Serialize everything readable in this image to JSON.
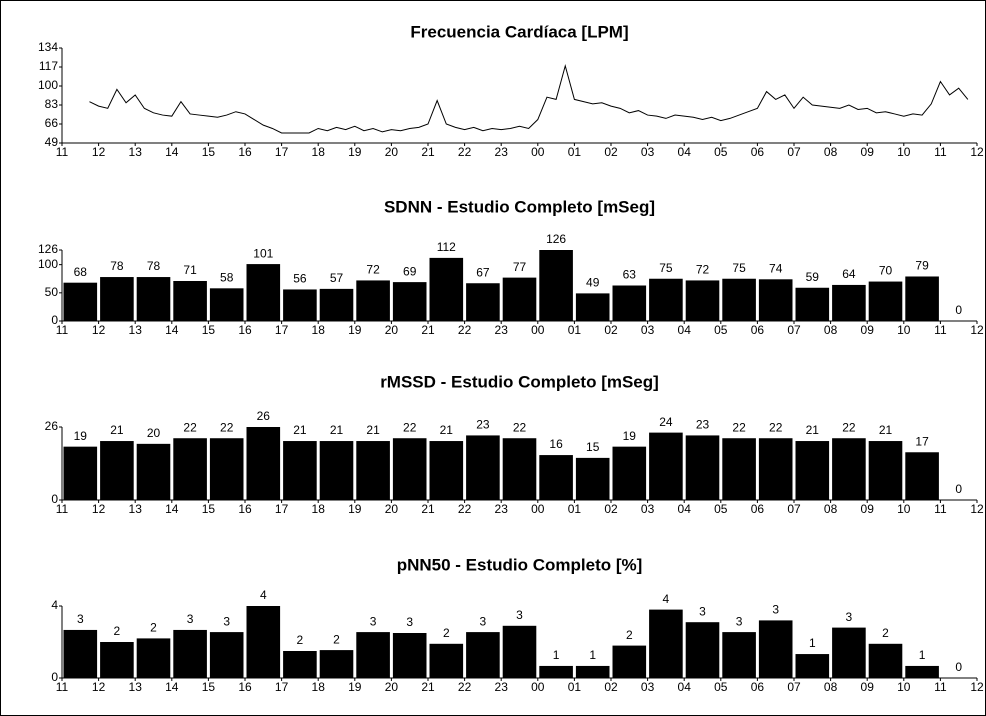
{
  "chart_data": [
    {
      "type": "line",
      "title": "Frecuencia Cardíaca [LPM]",
      "color": "#000000",
      "xlim": [
        11,
        36
      ],
      "xticks": [
        11,
        12,
        13,
        14,
        15,
        16,
        17,
        18,
        19,
        20,
        21,
        22,
        23,
        {
          "value": 24,
          "label": "00"
        },
        {
          "value": 25,
          "label": "01"
        },
        {
          "value": 26,
          "label": "02"
        },
        {
          "value": 27,
          "label": "03"
        },
        {
          "value": 28,
          "label": "04"
        },
        {
          "value": 29,
          "label": "05"
        },
        {
          "value": 30,
          "label": "06"
        },
        {
          "value": 31,
          "label": "07"
        },
        {
          "value": 32,
          "label": "08"
        },
        {
          "value": 33,
          "label": "09"
        },
        {
          "value": 34,
          "label": "10"
        },
        {
          "value": 35,
          "label": "11"
        },
        {
          "value": 36,
          "label": "12"
        }
      ],
      "ylim": [
        49,
        134
      ],
      "yticks": [
        49,
        66,
        83,
        100,
        117,
        134
      ],
      "x": [
        11.75,
        12,
        12.25,
        12.5,
        12.75,
        13,
        13.25,
        13.5,
        13.75,
        14,
        14.25,
        14.5,
        14.75,
        15,
        15.25,
        15.5,
        15.75,
        16,
        16.25,
        16.5,
        16.75,
        17,
        17.25,
        17.5,
        17.75,
        18,
        18.25,
        18.5,
        18.75,
        19,
        19.25,
        19.5,
        19.75,
        20,
        20.25,
        20.5,
        20.75,
        21,
        21.25,
        21.5,
        21.75,
        22,
        22.25,
        22.5,
        22.75,
        23,
        23.25,
        23.5,
        23.75,
        24,
        24.25,
        24.5,
        24.75,
        25,
        25.25,
        25.5,
        25.75,
        26,
        26.25,
        26.5,
        26.75,
        27,
        27.25,
        27.5,
        27.75,
        28,
        28.25,
        28.5,
        28.75,
        29,
        29.25,
        29.5,
        29.75,
        30,
        30.25,
        30.5,
        30.75,
        31,
        31.25,
        31.5,
        31.75,
        32,
        32.25,
        32.5,
        32.75,
        33,
        33.25,
        33.5,
        33.75,
        34,
        34.25,
        34.5,
        34.75,
        35,
        35.25,
        35.5,
        35.75
      ],
      "values": [
        86,
        82,
        80,
        97,
        85,
        92,
        80,
        76,
        74,
        73,
        86,
        75,
        74,
        73,
        72,
        74,
        77,
        75,
        70,
        65,
        62,
        58,
        58,
        58,
        58,
        62,
        60,
        63,
        61,
        64,
        60,
        62,
        59,
        61,
        60,
        62,
        63,
        66,
        87,
        66,
        63,
        61,
        63,
        60,
        62,
        61,
        62,
        64,
        62,
        70,
        90,
        88,
        118,
        88,
        86,
        84,
        85,
        82,
        80,
        76,
        78,
        74,
        73,
        71,
        74,
        73,
        72,
        70,
        72,
        69,
        71,
        74,
        77,
        80,
        95,
        88,
        92,
        80,
        90,
        83,
        82,
        81,
        80,
        83,
        79,
        80,
        76,
        77,
        75,
        73,
        75,
        74,
        84,
        104,
        92,
        98,
        88
      ]
    },
    {
      "type": "bar",
      "title": "SDNN - Estudio Completo [mSeg]",
      "color": "#000000",
      "xlim": [
        11,
        36
      ],
      "xticks": [
        11,
        12,
        13,
        14,
        15,
        16,
        17,
        18,
        19,
        20,
        21,
        22,
        23,
        {
          "value": 24,
          "label": "00"
        },
        {
          "value": 25,
          "label": "01"
        },
        {
          "value": 26,
          "label": "02"
        },
        {
          "value": 27,
          "label": "03"
        },
        {
          "value": 28,
          "label": "04"
        },
        {
          "value": 29,
          "label": "05"
        },
        {
          "value": 30,
          "label": "06"
        },
        {
          "value": 31,
          "label": "07"
        },
        {
          "value": 32,
          "label": "08"
        },
        {
          "value": 33,
          "label": "09"
        },
        {
          "value": 34,
          "label": "10"
        },
        {
          "value": 35,
          "label": "11"
        },
        {
          "value": 36,
          "label": "12"
        }
      ],
      "ylim": [
        0,
        126
      ],
      "yticks": [
        0,
        50,
        100,
        126
      ],
      "x": [
        11,
        12,
        13,
        14,
        15,
        16,
        17,
        18,
        19,
        20,
        21,
        22,
        23,
        24,
        25,
        26,
        27,
        28,
        29,
        30,
        31,
        32,
        33,
        34,
        35
      ],
      "values": [
        68,
        78,
        78,
        71,
        58,
        101,
        56,
        57,
        72,
        69,
        112,
        67,
        77,
        126,
        49,
        63,
        75,
        72,
        75,
        74,
        59,
        64,
        70,
        79,
        0
      ]
    },
    {
      "type": "bar",
      "title": "rMSSD - Estudio Completo [mSeg]",
      "color": "#000000",
      "xlim": [
        11,
        36
      ],
      "xticks": [
        11,
        12,
        13,
        14,
        15,
        16,
        17,
        18,
        19,
        20,
        21,
        22,
        23,
        {
          "value": 24,
          "label": "00"
        },
        {
          "value": 25,
          "label": "01"
        },
        {
          "value": 26,
          "label": "02"
        },
        {
          "value": 27,
          "label": "03"
        },
        {
          "value": 28,
          "label": "04"
        },
        {
          "value": 29,
          "label": "05"
        },
        {
          "value": 30,
          "label": "06"
        },
        {
          "value": 31,
          "label": "07"
        },
        {
          "value": 32,
          "label": "08"
        },
        {
          "value": 33,
          "label": "09"
        },
        {
          "value": 34,
          "label": "10"
        },
        {
          "value": 35,
          "label": "11"
        },
        {
          "value": 36,
          "label": "12"
        }
      ],
      "ylim": [
        0,
        26
      ],
      "yticks": [
        0,
        26
      ],
      "x": [
        11,
        12,
        13,
        14,
        15,
        16,
        17,
        18,
        19,
        20,
        21,
        22,
        23,
        24,
        25,
        26,
        27,
        28,
        29,
        30,
        31,
        32,
        33,
        34,
        35
      ],
      "values": [
        19,
        21,
        20,
        22,
        22,
        26,
        21,
        21,
        21,
        22,
        21,
        23,
        22,
        16,
        15,
        19,
        24,
        23,
        22,
        22,
        21,
        22,
        21,
        17,
        0
      ]
    },
    {
      "type": "bar",
      "title": "pNN50 - Estudio Completo [%]",
      "color": "#000000",
      "xlim": [
        11,
        36
      ],
      "xticks": [
        11,
        12,
        13,
        14,
        15,
        16,
        17,
        18,
        19,
        20,
        21,
        22,
        23,
        {
          "value": 24,
          "label": "00"
        },
        {
          "value": 25,
          "label": "01"
        },
        {
          "value": 26,
          "label": "02"
        },
        {
          "value": 27,
          "label": "03"
        },
        {
          "value": 28,
          "label": "04"
        },
        {
          "value": 29,
          "label": "05"
        },
        {
          "value": 30,
          "label": "06"
        },
        {
          "value": 31,
          "label": "07"
        },
        {
          "value": 32,
          "label": "08"
        },
        {
          "value": 33,
          "label": "09"
        },
        {
          "value": 34,
          "label": "10"
        },
        {
          "value": 35,
          "label": "11"
        },
        {
          "value": 36,
          "label": "12"
        }
      ],
      "ylim": [
        0,
        4
      ],
      "yticks": [
        0,
        4
      ],
      "x": [
        11,
        12,
        13,
        14,
        15,
        16,
        17,
        18,
        19,
        20,
        21,
        22,
        23,
        24,
        25,
        26,
        27,
        28,
        29,
        30,
        31,
        32,
        33,
        34,
        35
      ],
      "values": [
        2.67,
        2.0,
        2.2,
        2.67,
        2.55,
        4.0,
        1.5,
        1.55,
        2.55,
        2.5,
        1.9,
        2.55,
        2.9,
        0.67,
        0.67,
        1.8,
        3.8,
        3.1,
        2.55,
        3.2,
        1.33,
        2.8,
        1.9,
        0.67,
        0
      ],
      "value_labels": [
        "3",
        "2",
        "2",
        "3",
        "3",
        "4",
        "2",
        "2",
        "3",
        "3",
        "2",
        "3",
        "3",
        "1",
        "1",
        "2",
        "4",
        "3",
        "3",
        "3",
        "1",
        "3",
        "2",
        "1",
        "0"
      ]
    }
  ]
}
